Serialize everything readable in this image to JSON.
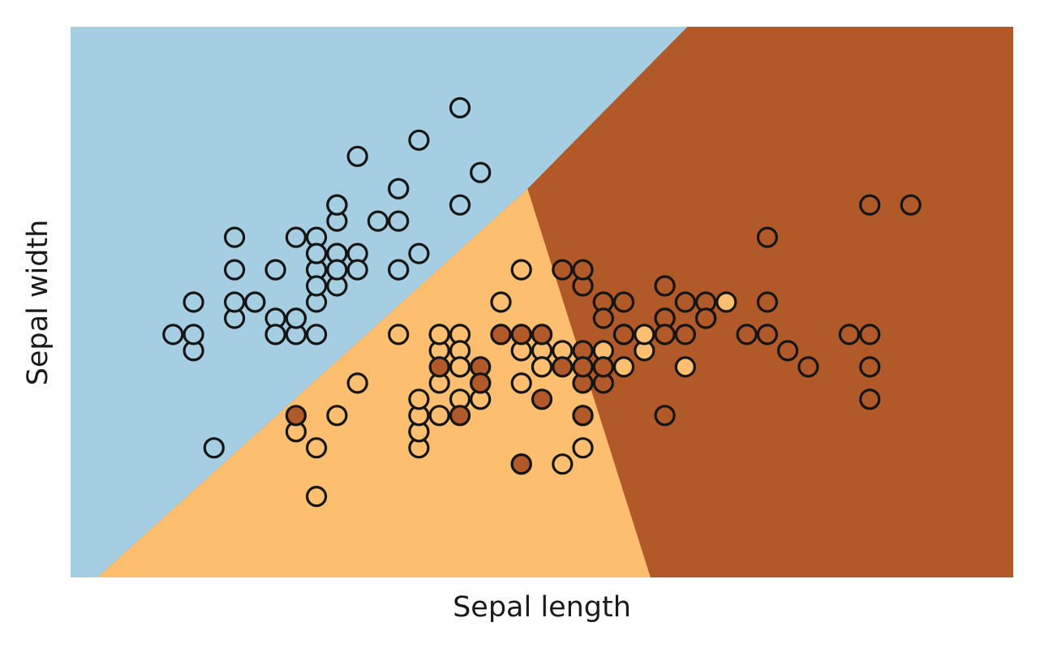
{
  "chart_data": {
    "type": "scatter",
    "title": "",
    "xlabel": "Sepal length",
    "ylabel": "Sepal width",
    "xlim": [
      3.8,
      8.4
    ],
    "ylim": [
      1.5,
      4.9
    ],
    "xticks": [],
    "yticks": [],
    "grid": false,
    "legend": "none",
    "colors": {
      "class_0": "#a6cee3",
      "class_1": "#fdbf6f",
      "class_2": "#b15928",
      "edge": "#151515"
    },
    "decision_regions": {
      "class_0_boundary_lines": [
        {
          "from": [
            3.93,
            1.5
          ],
          "to": [
            6.03,
            3.9
          ]
        },
        {
          "from": [
            6.03,
            3.9
          ],
          "to": [
            6.81,
            4.9
          ]
        }
      ],
      "class_1_2_boundary_lines": [
        {
          "from": [
            6.03,
            3.9
          ],
          "to": [
            6.07,
            3.74
          ]
        },
        {
          "from": [
            6.07,
            3.74
          ],
          "to": [
            6.63,
            1.5
          ]
        }
      ]
    },
    "series": [
      {
        "class": 0,
        "fill": "#a6cee3",
        "points": [
          [
            5.1,
            3.5
          ],
          [
            4.9,
            3.0
          ],
          [
            4.7,
            3.2
          ],
          [
            4.6,
            3.1
          ],
          [
            5.0,
            3.6
          ],
          [
            5.4,
            3.9
          ],
          [
            4.6,
            3.4
          ],
          [
            5.0,
            3.4
          ],
          [
            4.4,
            2.9
          ],
          [
            4.9,
            3.1
          ],
          [
            5.4,
            3.7
          ],
          [
            4.8,
            3.4
          ],
          [
            4.8,
            3.0
          ],
          [
            4.3,
            3.0
          ],
          [
            5.8,
            4.0
          ],
          [
            5.7,
            4.4
          ],
          [
            5.4,
            3.9
          ],
          [
            5.1,
            3.5
          ],
          [
            5.7,
            3.8
          ],
          [
            5.1,
            3.8
          ],
          [
            5.4,
            3.4
          ],
          [
            5.1,
            3.7
          ],
          [
            4.6,
            3.6
          ],
          [
            5.1,
            3.3
          ],
          [
            4.8,
            3.4
          ],
          [
            5.0,
            3.0
          ],
          [
            5.0,
            3.4
          ],
          [
            5.2,
            3.5
          ],
          [
            5.2,
            3.4
          ],
          [
            4.7,
            3.2
          ],
          [
            4.8,
            3.1
          ],
          [
            5.4,
            3.4
          ],
          [
            5.2,
            4.1
          ],
          [
            5.5,
            4.2
          ],
          [
            4.9,
            3.1
          ],
          [
            5.0,
            3.2
          ],
          [
            5.5,
            3.5
          ],
          [
            4.9,
            3.6
          ],
          [
            4.4,
            3.0
          ],
          [
            5.1,
            3.4
          ],
          [
            5.0,
            3.5
          ],
          [
            4.5,
            2.3
          ],
          [
            4.4,
            3.2
          ],
          [
            5.0,
            3.5
          ],
          [
            5.1,
            3.8
          ],
          [
            4.8,
            3.0
          ],
          [
            5.1,
            3.8
          ],
          [
            4.6,
            3.2
          ],
          [
            5.3,
            3.7
          ],
          [
            5.0,
            3.3
          ]
        ]
      },
      {
        "class": 1,
        "fill": "#fdbf6f",
        "points": [
          [
            7.0,
            3.2
          ],
          [
            6.4,
            3.2
          ],
          [
            6.9,
            3.1
          ],
          [
            5.5,
            2.3
          ],
          [
            6.5,
            2.8
          ],
          [
            5.7,
            2.8
          ],
          [
            6.3,
            3.3
          ],
          [
            4.9,
            2.4
          ],
          [
            6.6,
            2.9
          ],
          [
            5.2,
            2.7
          ],
          [
            5.0,
            2.0
          ],
          [
            5.9,
            3.0
          ],
          [
            6.0,
            2.2
          ],
          [
            6.1,
            2.9
          ],
          [
            5.6,
            2.9
          ],
          [
            6.7,
            3.1
          ],
          [
            5.6,
            3.0
          ],
          [
            5.8,
            2.7
          ],
          [
            6.2,
            2.2
          ],
          [
            5.6,
            2.5
          ],
          [
            5.9,
            3.2
          ],
          [
            6.1,
            2.8
          ],
          [
            6.3,
            2.5
          ],
          [
            6.1,
            2.8
          ],
          [
            6.4,
            2.9
          ],
          [
            6.6,
            3.0
          ],
          [
            6.8,
            2.8
          ],
          [
            6.7,
            3.0
          ],
          [
            6.0,
            2.9
          ],
          [
            5.7,
            2.6
          ],
          [
            5.5,
            2.4
          ],
          [
            5.5,
            2.4
          ],
          [
            5.8,
            2.7
          ],
          [
            6.0,
            2.7
          ],
          [
            5.4,
            3.0
          ],
          [
            6.0,
            3.4
          ],
          [
            6.7,
            3.1
          ],
          [
            6.3,
            2.3
          ],
          [
            5.6,
            3.0
          ],
          [
            5.5,
            2.5
          ],
          [
            5.5,
            2.6
          ],
          [
            6.1,
            3.0
          ],
          [
            5.8,
            2.6
          ],
          [
            5.0,
            2.3
          ],
          [
            5.6,
            2.7
          ],
          [
            5.7,
            3.0
          ],
          [
            5.7,
            2.9
          ],
          [
            6.2,
            2.9
          ],
          [
            5.1,
            2.5
          ],
          [
            5.7,
            2.8
          ]
        ]
      },
      {
        "class": 2,
        "fill": "#b15928",
        "points": [
          [
            6.3,
            3.3
          ],
          [
            5.8,
            2.7
          ],
          [
            7.1,
            3.0
          ],
          [
            6.3,
            2.9
          ],
          [
            6.5,
            3.0
          ],
          [
            7.6,
            3.0
          ],
          [
            4.9,
            2.5
          ],
          [
            7.3,
            2.9
          ],
          [
            6.7,
            2.5
          ],
          [
            7.2,
            3.6
          ],
          [
            6.5,
            3.2
          ],
          [
            6.4,
            2.7
          ],
          [
            6.8,
            3.0
          ],
          [
            5.7,
            2.5
          ],
          [
            5.8,
            2.8
          ],
          [
            6.4,
            3.2
          ],
          [
            6.5,
            3.0
          ],
          [
            7.7,
            3.8
          ],
          [
            7.7,
            2.6
          ],
          [
            6.0,
            2.2
          ],
          [
            6.9,
            3.2
          ],
          [
            5.6,
            2.8
          ],
          [
            7.7,
            2.8
          ],
          [
            6.3,
            2.7
          ],
          [
            6.7,
            3.3
          ],
          [
            7.2,
            3.2
          ],
          [
            6.2,
            2.8
          ],
          [
            6.1,
            3.0
          ],
          [
            6.4,
            2.8
          ],
          [
            7.2,
            3.0
          ],
          [
            7.4,
            2.8
          ],
          [
            7.9,
            3.8
          ],
          [
            6.4,
            2.8
          ],
          [
            6.3,
            2.8
          ],
          [
            6.1,
            2.6
          ],
          [
            7.7,
            3.0
          ],
          [
            6.3,
            3.4
          ],
          [
            6.4,
            3.1
          ],
          [
            6.0,
            3.0
          ],
          [
            6.9,
            3.1
          ],
          [
            6.7,
            3.1
          ],
          [
            6.9,
            3.1
          ],
          [
            5.8,
            2.7
          ],
          [
            6.8,
            3.2
          ],
          [
            6.7,
            3.3
          ],
          [
            6.7,
            3.0
          ],
          [
            6.3,
            2.5
          ],
          [
            6.5,
            3.0
          ],
          [
            6.2,
            3.4
          ],
          [
            5.9,
            3.0
          ]
        ]
      }
    ]
  }
}
